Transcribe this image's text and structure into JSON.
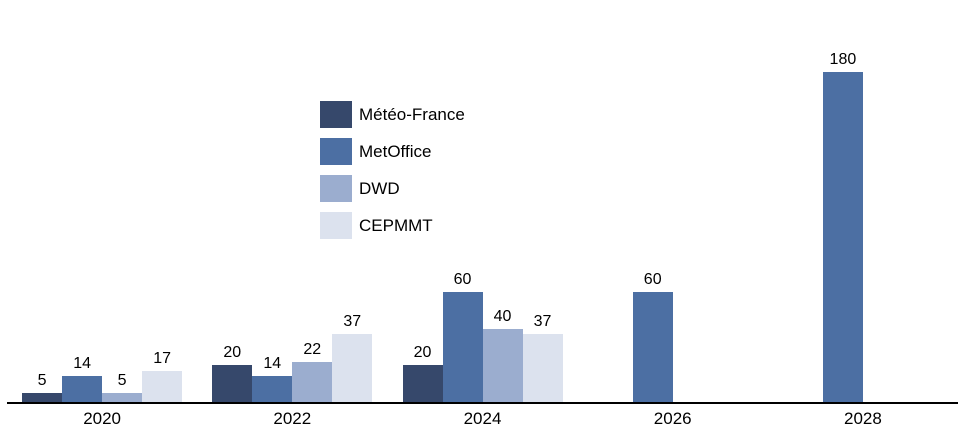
{
  "chart_data": {
    "type": "bar",
    "categories": [
      "2020",
      "2022",
      "2024",
      "2026",
      "2028"
    ],
    "series": [
      {
        "name": "Météo-France",
        "color": "#36486B",
        "values": [
          5,
          20,
          20,
          null,
          null
        ]
      },
      {
        "name": "MetOffice",
        "color": "#4C6FA3",
        "values": [
          14,
          14,
          60,
          60,
          180
        ]
      },
      {
        "name": "DWD",
        "color": "#9BADCF",
        "values": [
          5,
          22,
          40,
          null,
          null
        ]
      },
      {
        "name": "CEPMMT",
        "color": "#DCE2EE",
        "values": [
          17,
          37,
          37,
          null,
          null
        ]
      }
    ],
    "title": "",
    "xlabel": "",
    "ylabel": "",
    "ylim": [
      0,
      196
    ],
    "grid": false,
    "y_axis_visible": false,
    "legend_position": "upper-left-inside",
    "data_labels": true
  },
  "colors": {
    "background": "#FFFFFF",
    "axis_line": "#000000",
    "label_text": "#000000"
  }
}
